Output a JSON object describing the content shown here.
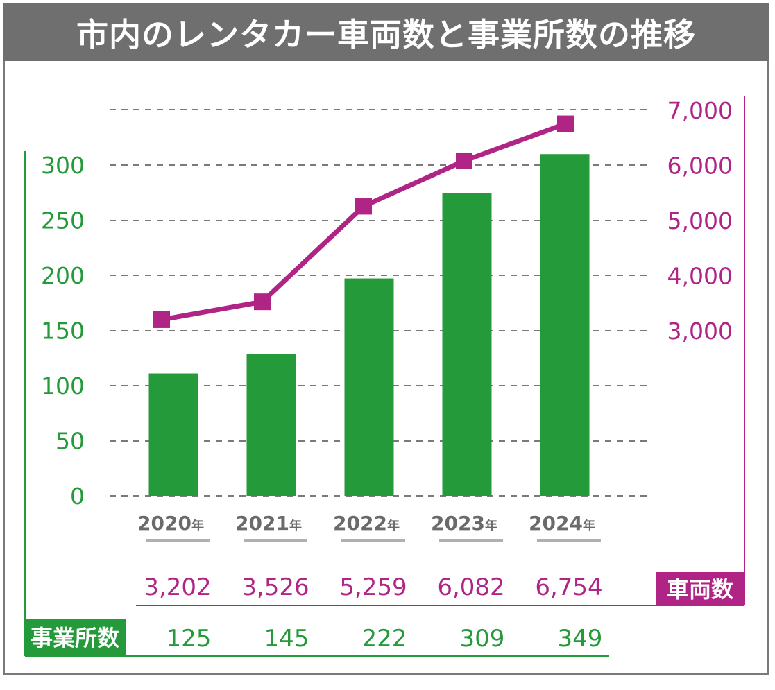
{
  "title": "市内のレンタカー車両数と事業所数の推移",
  "colors": {
    "banner": "#6f6f6f",
    "offices": "#259a3a",
    "vehicles": "#b02486",
    "grid": "#7a7a7a",
    "year_label": "#6a6a6a"
  },
  "chart_data": {
    "type": "bar",
    "title": "市内のレンタカー車両数と事業所数の推移",
    "categories": [
      "2020年",
      "2021年",
      "2022年",
      "2023年",
      "2024年"
    ],
    "category_years": [
      "2020",
      "2021",
      "2022",
      "2023",
      "2024"
    ],
    "category_suffix": "年",
    "series": [
      {
        "name": "事業所数",
        "type": "bar",
        "axis": "left",
        "values": [
          125,
          145,
          222,
          309,
          349
        ],
        "labels": [
          "125",
          "145",
          "222",
          "309",
          "349"
        ]
      },
      {
        "name": "車両数",
        "type": "line",
        "axis": "right",
        "marker": "square",
        "values": [
          3202,
          3526,
          5259,
          6082,
          6754
        ],
        "labels": [
          "3,202",
          "3,526",
          "5,259",
          "6,082",
          "6,754"
        ]
      }
    ],
    "left_axis": {
      "ticks": [
        0,
        50,
        100,
        150,
        200,
        250,
        300
      ],
      "tick_labels": [
        "0",
        "50",
        "100",
        "150",
        "200",
        "250",
        "300"
      ],
      "ylim": [
        0,
        300
      ]
    },
    "right_axis": {
      "ticks": [
        3000,
        4000,
        5000,
        6000,
        7000
      ],
      "tick_labels": [
        "3,000",
        "4,000",
        "5,000",
        "6,000",
        "7,000"
      ],
      "ylim": [
        3000,
        7000
      ]
    },
    "grid": true,
    "grid_style": "dashed",
    "legend": "table below chart",
    "xlabel": "",
    "ylabel": ""
  }
}
